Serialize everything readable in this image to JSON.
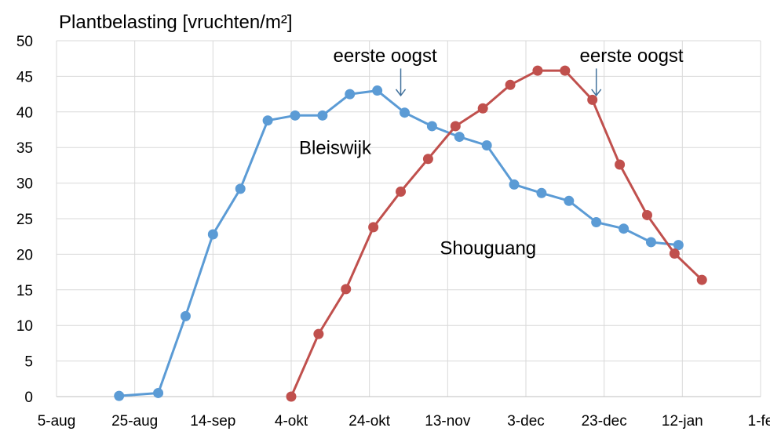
{
  "chart_data": {
    "type": "line",
    "title": "Plantbelasting [vruchten/m²]",
    "xlabel": "",
    "ylabel": "",
    "ylim": [
      0,
      50
    ],
    "y_ticks": [
      "0",
      "5",
      "10",
      "15",
      "20",
      "25",
      "30",
      "35",
      "40",
      "45",
      "50"
    ],
    "x_range": [
      "2020-08-05",
      "2021-02-01"
    ],
    "x_ticks": [
      {
        "date": "2020-08-05",
        "label": "5-aug"
      },
      {
        "date": "2020-08-25",
        "label": "25-aug"
      },
      {
        "date": "2020-09-14",
        "label": "14-sep"
      },
      {
        "date": "2020-10-04",
        "label": "4-okt"
      },
      {
        "date": "2020-10-24",
        "label": "24-okt"
      },
      {
        "date": "2020-11-13",
        "label": "13-nov"
      },
      {
        "date": "2020-12-03",
        "label": "3-dec"
      },
      {
        "date": "2020-12-23",
        "label": "23-dec"
      },
      {
        "date": "2021-01-12",
        "label": "12-jan"
      },
      {
        "date": "2021-02-01",
        "label": "1-fe"
      }
    ],
    "grid": true,
    "series": [
      {
        "name": "Bleiswijk",
        "color": "#5b9bd5",
        "points": [
          {
            "x": "2020-08-21",
            "y": 0.1
          },
          {
            "x": "2020-08-31",
            "y": 0.5
          },
          {
            "x": "2020-09-07",
            "y": 11.3
          },
          {
            "x": "2020-09-14",
            "y": 22.8
          },
          {
            "x": "2020-09-21",
            "y": 29.2
          },
          {
            "x": "2020-09-28",
            "y": 38.8
          },
          {
            "x": "2020-10-05",
            "y": 39.5
          },
          {
            "x": "2020-10-12",
            "y": 39.5
          },
          {
            "x": "2020-10-19",
            "y": 42.5
          },
          {
            "x": "2020-10-26",
            "y": 43.0
          },
          {
            "x": "2020-11-02",
            "y": 39.9
          },
          {
            "x": "2020-11-09",
            "y": 38.0
          },
          {
            "x": "2020-11-16",
            "y": 36.5
          },
          {
            "x": "2020-11-23",
            "y": 35.3
          },
          {
            "x": "2020-11-30",
            "y": 29.8
          },
          {
            "x": "2020-12-07",
            "y": 28.6
          },
          {
            "x": "2020-12-14",
            "y": 27.5
          },
          {
            "x": "2020-12-21",
            "y": 24.5
          },
          {
            "x": "2020-12-28",
            "y": 23.6
          },
          {
            "x": "2021-01-04",
            "y": 21.7
          },
          {
            "x": "2021-01-11",
            "y": 21.3
          }
        ]
      },
      {
        "name": "Shouguang",
        "color": "#c0504d",
        "points": [
          {
            "x": "2020-10-04",
            "y": 0.0
          },
          {
            "x": "2020-10-11",
            "y": 8.8
          },
          {
            "x": "2020-10-18",
            "y": 15.1
          },
          {
            "x": "2020-10-25",
            "y": 23.8
          },
          {
            "x": "2020-11-01",
            "y": 28.8
          },
          {
            "x": "2020-11-08",
            "y": 33.4
          },
          {
            "x": "2020-11-15",
            "y": 38.0
          },
          {
            "x": "2020-11-22",
            "y": 40.5
          },
          {
            "x": "2020-11-29",
            "y": 43.8
          },
          {
            "x": "2020-12-06",
            "y": 45.8
          },
          {
            "x": "2020-12-13",
            "y": 45.8
          },
          {
            "x": "2020-12-20",
            "y": 41.7
          },
          {
            "x": "2020-12-27",
            "y": 32.6
          },
          {
            "x": "2021-01-03",
            "y": 25.5
          },
          {
            "x": "2021-01-10",
            "y": 20.1
          },
          {
            "x": "2021-01-17",
            "y": 16.4
          }
        ]
      }
    ],
    "series_labels": [
      {
        "text": "Bleiswijk",
        "x": "2020-10-06",
        "y": 34.1
      },
      {
        "text": "Shouguang",
        "x": "2020-11-11",
        "y": 20.0
      }
    ],
    "annotations": [
      {
        "text": "eerste oogst",
        "x": "2020-10-28",
        "y": 47.0,
        "arrow_x": "2020-11-01",
        "arrow_from": 46.1,
        "arrow_to": 42.3
      },
      {
        "text": "eerste oogst",
        "x": "2020-12-30",
        "y": 47.0,
        "arrow_x": "2020-12-21",
        "arrow_from": 46.1,
        "arrow_to": 42.3
      }
    ]
  }
}
